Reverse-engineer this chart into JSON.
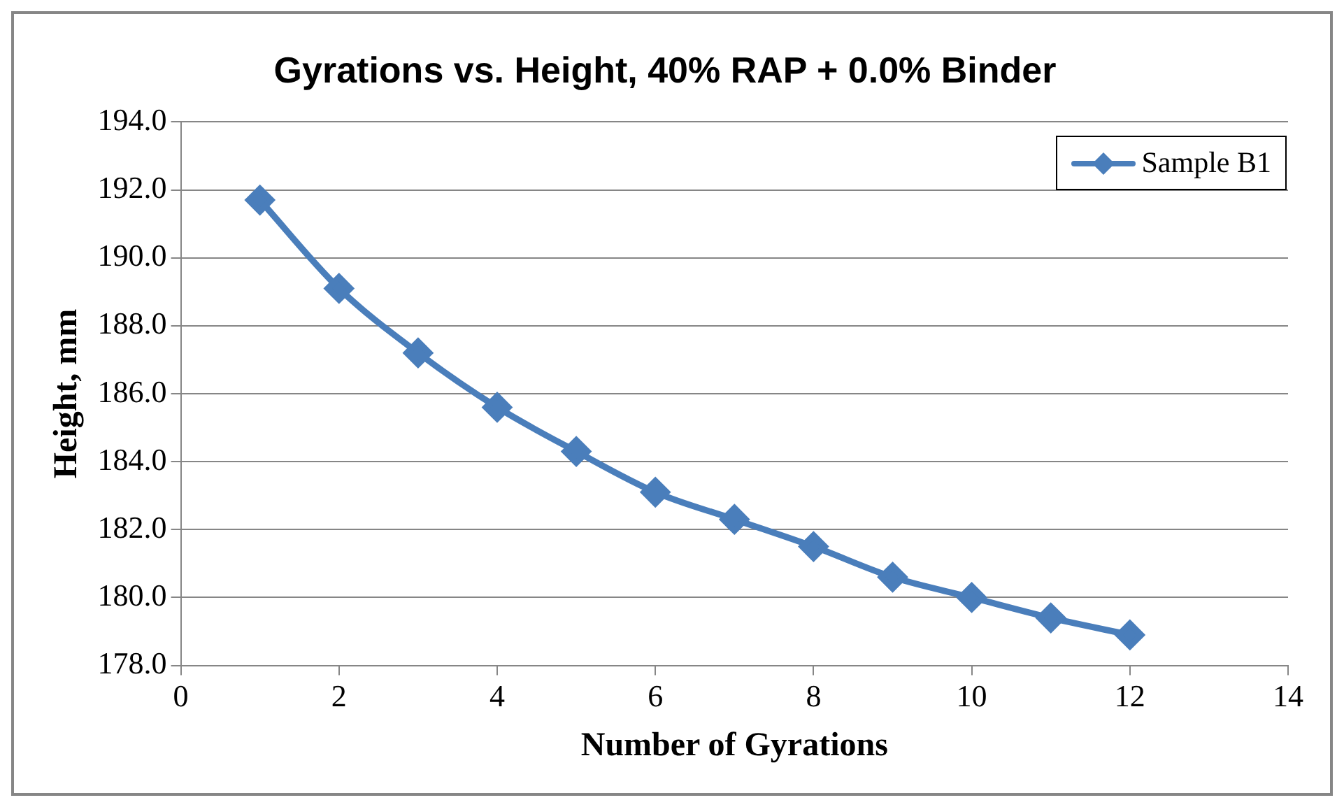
{
  "chart_data": {
    "type": "line",
    "title": "Gyrations vs. Height, 40% RAP + 0.0% Binder",
    "xlabel": "Number of Gyrations",
    "ylabel": "Height, mm",
    "x": [
      1,
      2,
      3,
      4,
      5,
      6,
      7,
      8,
      9,
      10,
      11,
      12
    ],
    "series": [
      {
        "name": "Sample B1",
        "color": "#4a7ebb",
        "values": [
          191.7,
          189.1,
          187.2,
          185.6,
          184.3,
          183.1,
          182.3,
          181.5,
          180.6,
          180.0,
          179.4,
          178.9
        ]
      }
    ],
    "xlim": [
      0,
      14
    ],
    "xticks": [
      0,
      2,
      4,
      6,
      8,
      10,
      12,
      14
    ],
    "ylim": [
      178,
      194
    ],
    "yticks": [
      {
        "value": 178,
        "label": "178.0"
      },
      {
        "value": 180,
        "label": "180.0"
      },
      {
        "value": 182,
        "label": "182.0"
      },
      {
        "value": 184,
        "label": "184.0"
      },
      {
        "value": 186,
        "label": "186.0"
      },
      {
        "value": 188,
        "label": "188.0"
      },
      {
        "value": 190,
        "label": "190.0"
      },
      {
        "value": 192,
        "label": "192.0"
      },
      {
        "value": 194,
        "label": "194.0"
      }
    ],
    "grid": "y",
    "legend": "top right",
    "marker": "diamond",
    "line_style": "solid"
  }
}
